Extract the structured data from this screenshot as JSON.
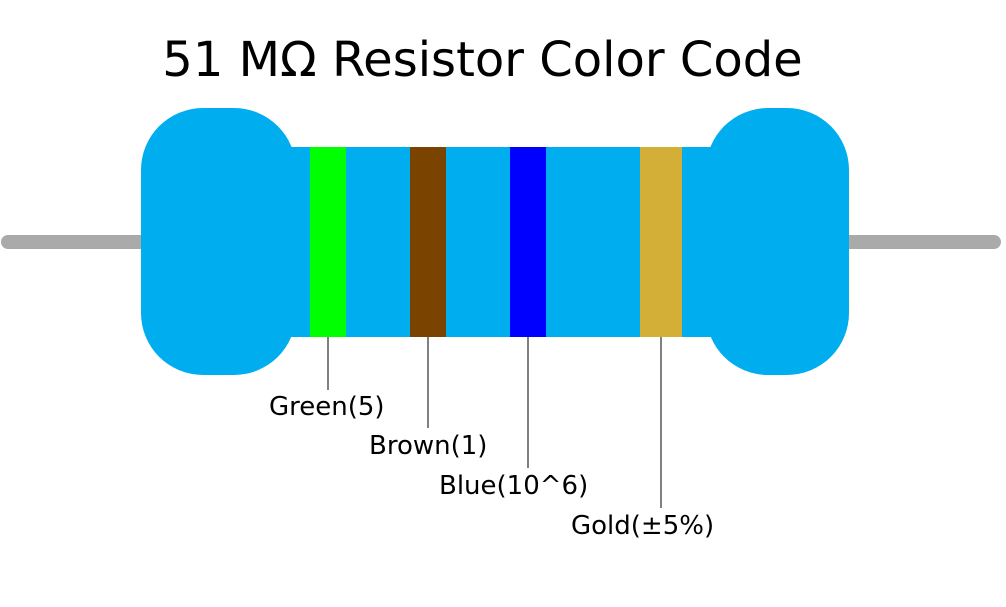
{
  "title": "51 MΩ Resistor Color Code",
  "colors": {
    "body": "#00aeef",
    "lead": "#aaaaaa",
    "leader_line": "#000000"
  },
  "bands": [
    {
      "label": "Green(5)",
      "color": "#00ff00"
    },
    {
      "label": "Brown(1)",
      "color": "#7a4400"
    },
    {
      "label": "Blue(10^6)",
      "color": "#0000ff"
    },
    {
      "label": "Gold(±5%)",
      "color": "#d4af37"
    }
  ]
}
